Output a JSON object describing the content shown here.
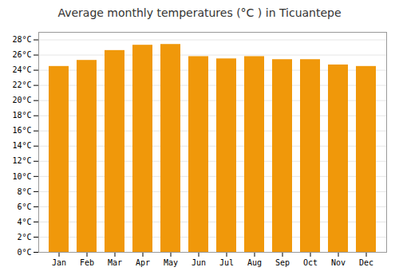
{
  "chart_data": {
    "type": "bar",
    "title": "Average monthly temperatures (°C ) in Ticuantepe",
    "categories": [
      "Jan",
      "Feb",
      "Mar",
      "Apr",
      "May",
      "Jun",
      "Jul",
      "Aug",
      "Sep",
      "Oct",
      "Nov",
      "Dec"
    ],
    "values": [
      24.5,
      25.3,
      26.6,
      27.3,
      27.4,
      25.8,
      25.5,
      25.8,
      25.4,
      25.4,
      24.7,
      24.5
    ],
    "color": "#F0980A",
    "ylim": [
      0,
      29
    ],
    "yticks": [
      {
        "value": 0,
        "label": "0°C"
      },
      {
        "value": 2,
        "label": "2°C"
      },
      {
        "value": 4,
        "label": "4°C"
      },
      {
        "value": 6,
        "label": "6°C"
      },
      {
        "value": 8,
        "label": "8°C"
      },
      {
        "value": 10,
        "label": "10°C"
      },
      {
        "value": 12,
        "label": "12°C"
      },
      {
        "value": 14,
        "label": "14°C"
      },
      {
        "value": 16,
        "label": "16°C"
      },
      {
        "value": 18,
        "label": "18°C"
      },
      {
        "value": 20,
        "label": "20°C"
      },
      {
        "value": 22,
        "label": "22°C"
      },
      {
        "value": 24,
        "label": "24°C"
      },
      {
        "value": 26,
        "label": "26°C"
      },
      {
        "value": 28,
        "label": "28°C"
      }
    ],
    "grid": true
  }
}
